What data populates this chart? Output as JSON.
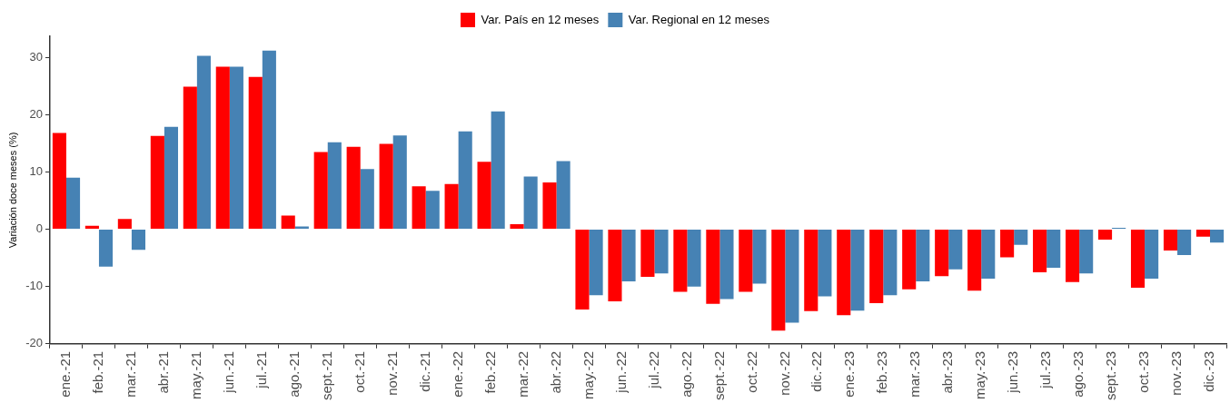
{
  "chart_data": {
    "type": "bar",
    "ylabel": "Variación doce meses (%)",
    "categories": [
      "ene.-21",
      "feb.-21",
      "mar.-21",
      "abr.-21",
      "may.-21",
      "jun.-21",
      "jul.-21",
      "ago.-21",
      "sept.-21",
      "oct.-21",
      "nov.-21",
      "dic.-21",
      "ene.-22",
      "feb.-22",
      "mar.-22",
      "abr.-22",
      "may.-22",
      "jun.-22",
      "jul.-22",
      "ago.-22",
      "sept.-22",
      "oct.-22",
      "nov.-22",
      "dic.-22",
      "ene.-23",
      "feb.-23",
      "mar.-23",
      "abr.-23",
      "may.-23",
      "jun.-23",
      "jul.-23",
      "ago.-23",
      "sept.-23",
      "oct.-23",
      "nov.-23",
      "dic.-23"
    ],
    "series": [
      {
        "name": "Var. País en 12 meses",
        "color": "#ff0000",
        "values": [
          16.8,
          0.6,
          1.8,
          16.3,
          24.9,
          28.4,
          26.6,
          2.4,
          13.5,
          14.4,
          14.9,
          7.5,
          7.9,
          11.8,
          0.9,
          8.2,
          -14.0,
          -12.6,
          -8.3,
          -10.9,
          -13.0,
          -10.9,
          -17.7,
          -14.3,
          -15.0,
          -12.9,
          -10.5,
          -8.2,
          -10.7,
          -4.9,
          -7.5,
          -9.2,
          -1.8,
          -10.2,
          -3.7,
          -1.3
        ]
      },
      {
        "name": "Var. Regional en 12 meses",
        "color": "#4682b4",
        "values": [
          9.0,
          -6.5,
          -3.6,
          17.9,
          30.3,
          28.4,
          31.2,
          0.5,
          15.2,
          10.5,
          16.4,
          6.7,
          17.1,
          20.6,
          9.2,
          11.9,
          -11.5,
          -9.1,
          -7.7,
          -10.0,
          -12.2,
          -9.5,
          -16.3,
          -11.7,
          -14.2,
          -11.5,
          -9.1,
          -7.0,
          -8.6,
          -2.7,
          -6.7,
          -7.7,
          0.1,
          -8.6,
          -4.5,
          -2.3
        ]
      }
    ],
    "ylim": [
      -20,
      33.7
    ],
    "yticks": [
      -20,
      -10,
      0,
      10,
      20,
      30
    ],
    "grid": false,
    "legend": "top"
  }
}
